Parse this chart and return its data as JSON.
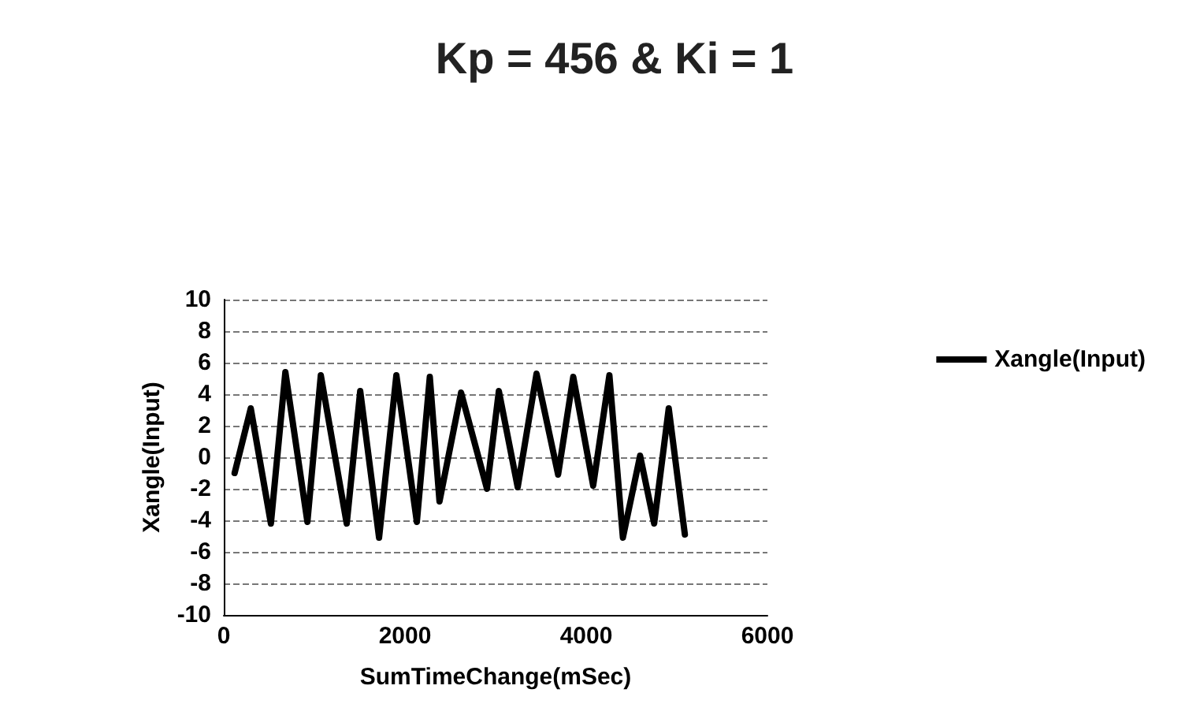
{
  "chart_data": {
    "type": "line",
    "title": "Kp = 456 & Ki = 1",
    "xlabel": "SumTimeChange(mSec)",
    "ylabel": "Xangle(Input)",
    "x": [
      120,
      298,
      520,
      680,
      923,
      1071,
      1357,
      1506,
      1714,
      1905,
      2131,
      2274,
      2381,
      2619,
      2905,
      3036,
      3244,
      3452,
      3690,
      3857,
      4077,
      4256,
      4405,
      4595,
      4750,
      4911,
      5089
    ],
    "series": [
      {
        "name": "Xangle(Input)",
        "color": "#000000",
        "values": [
          -1,
          3.1,
          -4.2,
          5.4,
          -4.1,
          5.2,
          -4.2,
          4.2,
          -5.1,
          5.2,
          -4.1,
          5.1,
          -2.8,
          4.1,
          -2,
          4.2,
          -1.9,
          5.3,
          -1.1,
          5.1,
          -1.8,
          5.2,
          -5.1,
          0.1,
          -4.2,
          3.1,
          -4.9
        ]
      }
    ],
    "xlim": [
      0,
      6000
    ],
    "xticks": [
      0,
      2000,
      4000,
      6000
    ],
    "ylim": [
      -10,
      10
    ],
    "yticks": [
      -10,
      -8,
      -6,
      -4,
      -2,
      0,
      2,
      4,
      6,
      8,
      10
    ],
    "grid": "y",
    "legend": "right",
    "marker": "none",
    "line_style": "solid"
  }
}
